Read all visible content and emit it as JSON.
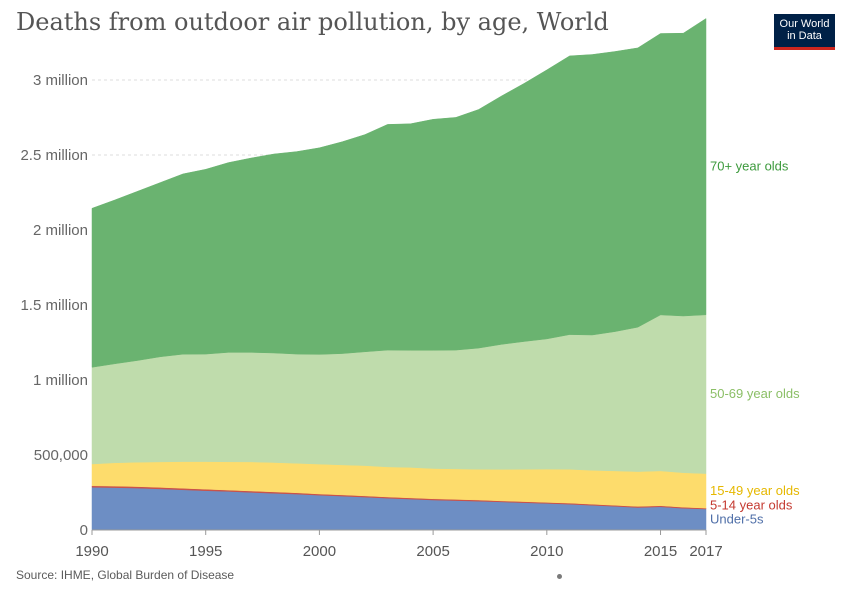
{
  "header": {
    "title": "Deaths from outdoor air pollution, by age, World",
    "logo_line1": "Our World",
    "logo_line2": "in Data"
  },
  "footer": {
    "source": "Source: IHME, Global Burden of Disease"
  },
  "chart_data": {
    "type": "area",
    "stacked": true,
    "title": "Deaths from outdoor air pollution, by age, World",
    "xlabel": "",
    "ylabel": "",
    "x": [
      1990,
      1991,
      1992,
      1993,
      1994,
      1995,
      1996,
      1997,
      1998,
      1999,
      2000,
      2001,
      2002,
      2003,
      2004,
      2005,
      2006,
      2007,
      2008,
      2009,
      2010,
      2011,
      2012,
      2013,
      2014,
      2015,
      2016,
      2017
    ],
    "xlim": [
      1990,
      2017
    ],
    "ylim": [
      0,
      3400000
    ],
    "x_ticks": [
      {
        "value": 1990,
        "label": "1990"
      },
      {
        "value": 1995,
        "label": "1995"
      },
      {
        "value": 2000,
        "label": "2000"
      },
      {
        "value": 2005,
        "label": "2005"
      },
      {
        "value": 2010,
        "label": "2010"
      },
      {
        "value": 2015,
        "label": "2015"
      },
      {
        "value": 2017,
        "label": "2017"
      }
    ],
    "y_ticks": [
      {
        "value": 0,
        "label": "0"
      },
      {
        "value": 500000,
        "label": "500,000"
      },
      {
        "value": 1000000,
        "label": "1 million"
      },
      {
        "value": 1500000,
        "label": "1.5 million"
      },
      {
        "value": 2000000,
        "label": "2 million"
      },
      {
        "value": 2500000,
        "label": "2.5 million"
      },
      {
        "value": 3000000,
        "label": "3 million"
      }
    ],
    "grid": "horizontal dashed",
    "legend": "labels at right end of series",
    "series": [
      {
        "name": "Under-5s",
        "color": "#6d8ec4",
        "label_color": "#4f6fa8",
        "values": [
          285000,
          283000,
          279000,
          274000,
          268000,
          262000,
          257000,
          251000,
          245000,
          239000,
          232000,
          226000,
          219000,
          212000,
          206000,
          200000,
          196000,
          192000,
          187000,
          182000,
          177000,
          172000,
          165000,
          158000,
          150000,
          155000,
          145000,
          140000
        ]
      },
      {
        "name": "5-14 year olds",
        "color": "#c9524a",
        "label_color": "#c43a31",
        "values": [
          10000,
          10000,
          10000,
          10000,
          10000,
          10000,
          9000,
          9000,
          9000,
          9000,
          8000,
          8000,
          8000,
          8000,
          8000,
          8000,
          8000,
          8000,
          7000,
          7000,
          7000,
          7000,
          7000,
          7000,
          7000,
          7000,
          7000,
          6000
        ]
      },
      {
        "name": "15-49 year olds",
        "color": "#fddc6c",
        "label_color": "#e6b800",
        "values": [
          145000,
          155000,
          163000,
          170000,
          178000,
          184000,
          189000,
          194000,
          196000,
          197000,
          199000,
          200000,
          202000,
          201000,
          203000,
          202000,
          203000,
          205000,
          210000,
          216000,
          222000,
          226000,
          226000,
          229000,
          232000,
          232000,
          230000,
          230000
        ]
      },
      {
        "name": "50-69 year olds",
        "color": "#bfdcac",
        "label_color": "#8bbf66",
        "values": [
          645000,
          660000,
          678000,
          701000,
          716000,
          717000,
          729000,
          730000,
          730000,
          728000,
          732000,
          742000,
          759000,
          778000,
          781000,
          788000,
          792000,
          808000,
          833000,
          852000,
          868000,
          898000,
          902000,
          929000,
          963000,
          1040000,
          1045000,
          1059000
        ]
      },
      {
        "name": "70+ year olds",
        "color": "#6ab370",
        "label_color": "#3d9a3d",
        "values": [
          1060000,
          1092000,
          1128000,
          1161000,
          1202000,
          1232000,
          1265000,
          1296000,
          1327000,
          1350000,
          1377000,
          1412000,
          1448000,
          1505000,
          1510000,
          1540000,
          1552000,
          1590000,
          1656000,
          1720000,
          1793000,
          1858000,
          1870000,
          1867000,
          1862000,
          1876000,
          1885000,
          1975000
        ]
      }
    ]
  }
}
